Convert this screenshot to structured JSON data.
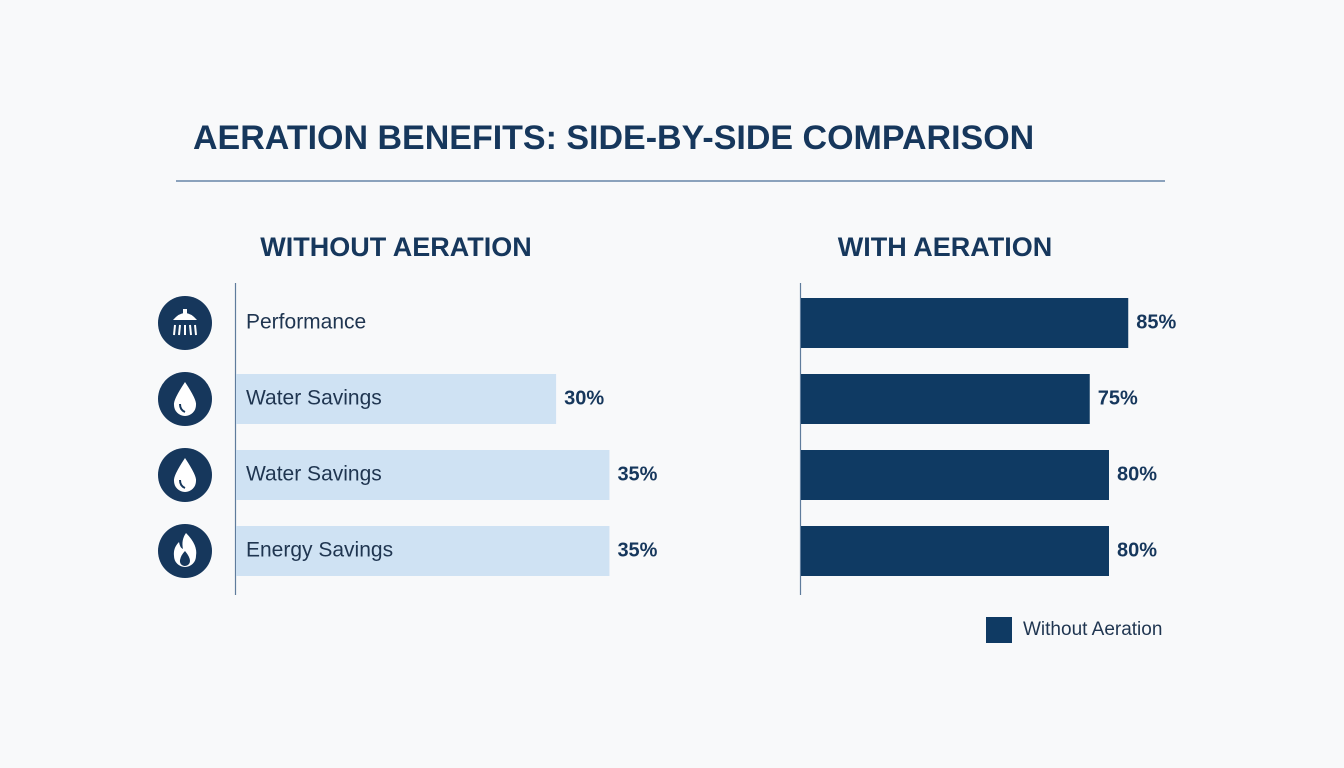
{
  "title": "AERATION BENEFITS: SIDE-BY-SIDE COMPARISON",
  "chart_data": [
    {
      "type": "bar",
      "title": "WITHOUT AERATION",
      "categories": [
        "Performance",
        "Water Savings",
        "Water Savings",
        "Energy Savings"
      ],
      "values": [
        null,
        30,
        35,
        35
      ],
      "value_labels": [
        null,
        "30%",
        "35%",
        "35%"
      ],
      "color": "#cfe2f3"
    },
    {
      "type": "bar",
      "title": "WITH AERATION",
      "series": [
        {
          "name": "Without Aeration",
          "color": "#0f3a63",
          "values": [
            85,
            75,
            80,
            80
          ],
          "value_labels": [
            "85%",
            "75%",
            "80%",
            "80%"
          ]
        }
      ],
      "legend": "bottom-right"
    }
  ]
}
